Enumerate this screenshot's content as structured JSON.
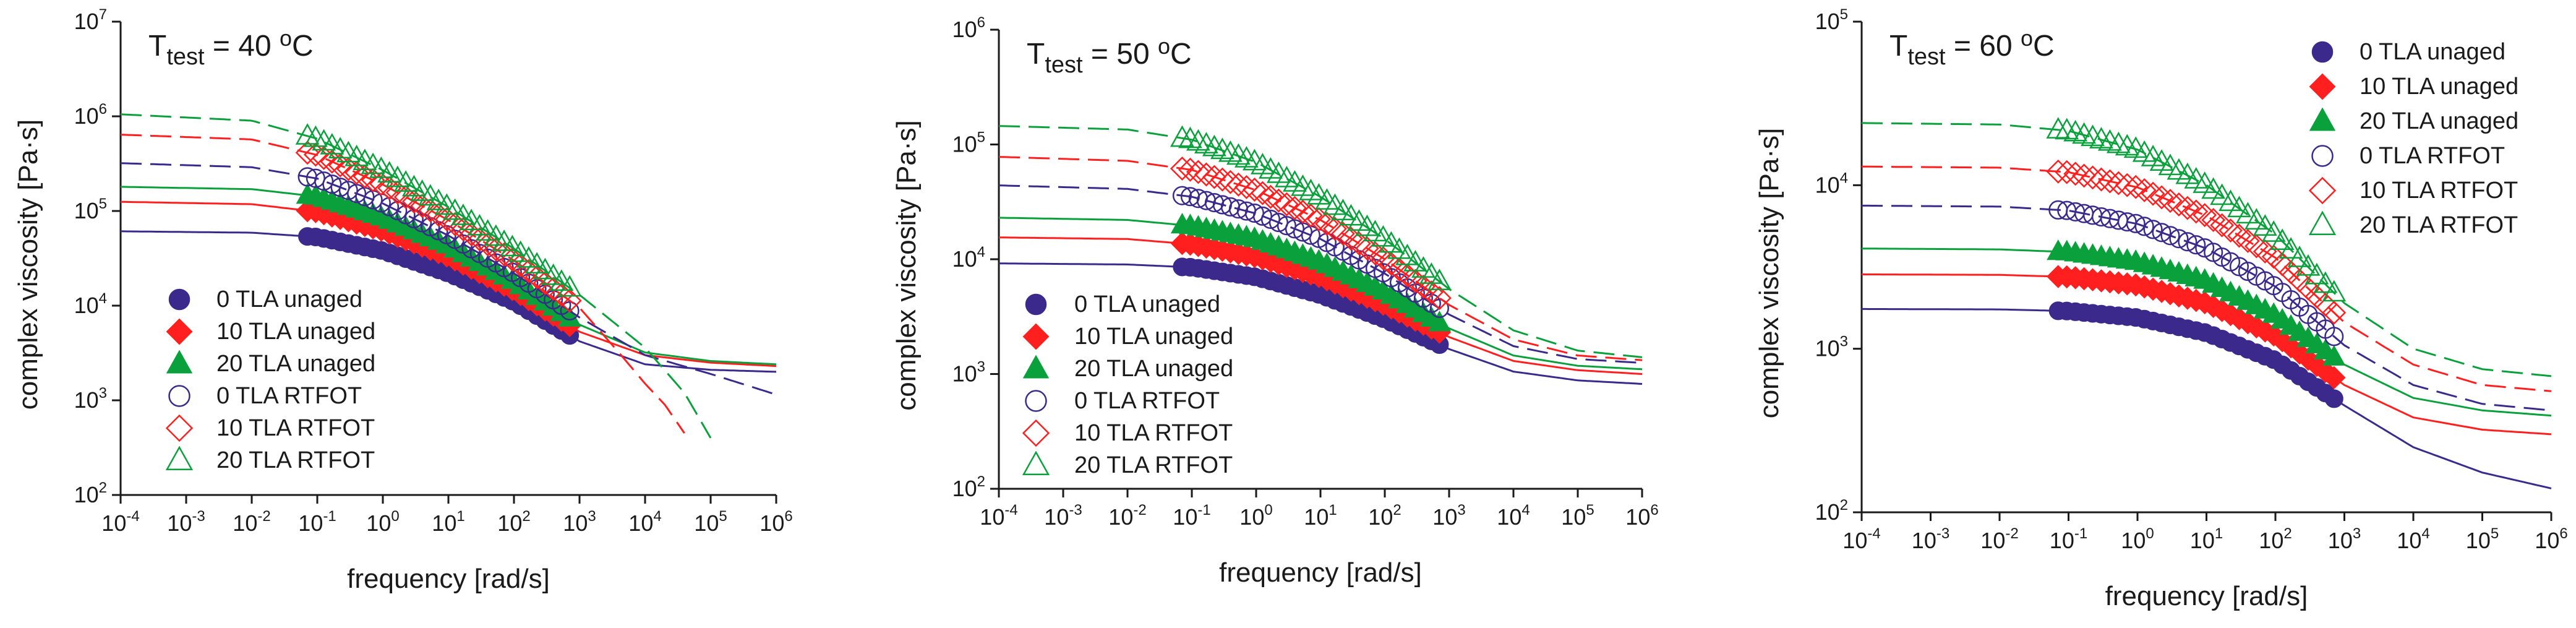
{
  "colors": {
    "0 TLA": "#3b2a8c",
    "10 TLA": "#ff1f1f",
    "20 TLA": "#0aa03c"
  },
  "chart_data": [
    {
      "type": "line",
      "title": {
        "prefix": "T",
        "sub": "test",
        "mid": " = 40 ",
        "sup": "o",
        "suffix": "C"
      },
      "xlabel": "frequency [rad/s]",
      "ylabel": "complex viscosity [Pa·s]",
      "xscale": "log",
      "yscale": "log",
      "xlim_exp": [
        -4,
        6
      ],
      "ylim_exp": [
        2,
        7
      ],
      "grid": false,
      "legend_position": "lower-left",
      "series": [
        {
          "name": "0 TLA unaged",
          "group": "0 TLA",
          "marker": "circle",
          "filled": true,
          "curve": "solid",
          "curve_points": [
            [
              -4,
              61000
            ],
            [
              -2,
              59000
            ],
            [
              -1,
              53000
            ],
            [
              0,
              38000
            ],
            [
              1,
              22000
            ],
            [
              2,
              11000
            ],
            [
              3,
              4200
            ],
            [
              4,
              2400
            ],
            [
              5,
              2100
            ],
            [
              6,
              2000
            ]
          ],
          "data_x_range": [
            -1.15,
            2.85
          ],
          "data_y_range": [
            45000,
            4800
          ]
        },
        {
          "name": "10 TLA unaged",
          "group": "10 TLA",
          "marker": "diamond",
          "filled": true,
          "curve": "solid",
          "curve_points": [
            [
              -4,
              125000
            ],
            [
              -2,
              118000
            ],
            [
              -1,
              98000
            ],
            [
              0,
              62000
            ],
            [
              1,
              33000
            ],
            [
              2,
              14500
            ],
            [
              3,
              5300
            ],
            [
              4,
              3000
            ],
            [
              5,
              2500
            ],
            [
              6,
              2300
            ]
          ],
          "data_x_range": [
            -1.15,
            2.85
          ],
          "data_y_range": [
            82000,
            6200
          ]
        },
        {
          "name": "20 TLA unaged",
          "group": "20 TLA",
          "marker": "triangle",
          "filled": true,
          "curve": "solid",
          "curve_points": [
            [
              -4,
              180000
            ],
            [
              -2,
              170000
            ],
            [
              -1,
              142000
            ],
            [
              0,
              85000
            ],
            [
              1,
              43000
            ],
            [
              2,
              18000
            ],
            [
              3,
              6300
            ],
            [
              4,
              3200
            ],
            [
              5,
              2600
            ],
            [
              6,
              2400
            ]
          ],
          "data_x_range": [
            -1.15,
            2.85
          ],
          "data_y_range": [
            115000,
            7000
          ]
        },
        {
          "name": "0 TLA RTFOT",
          "group": "0 TLA",
          "marker": "circle",
          "filled": false,
          "curve": "dashed",
          "curve_points": [
            [
              -4,
              320000
            ],
            [
              -2,
              290000
            ],
            [
              -1,
              220000
            ],
            [
              0,
              120000
            ],
            [
              1,
              55000
            ],
            [
              2,
              22000
            ],
            [
              3,
              7500
            ],
            [
              4,
              3000
            ],
            [
              5,
              1900
            ],
            [
              6,
              1150
            ]
          ],
          "data_x_range": [
            -1.15,
            2.85
          ],
          "data_y_range": [
            175000,
            8500
          ]
        },
        {
          "name": "10 TLA RTFOT",
          "group": "10 TLA",
          "marker": "diamond",
          "filled": false,
          "curve": "dashed",
          "curve_points": [
            [
              -4,
              640000
            ],
            [
              -2,
              570000
            ],
            [
              -1,
              390000
            ],
            [
              0,
              190000
            ],
            [
              1,
              80000
            ],
            [
              2,
              30000
            ],
            [
              3,
              9500
            ],
            [
              3.6,
              3200
            ],
            [
              4,
              1500
            ],
            [
              4.3,
              900
            ],
            [
              4.6,
              450
            ]
          ],
          "data_x_range": [
            -1.15,
            2.85
          ],
          "data_y_range": [
            280000,
            9500
          ]
        },
        {
          "name": "20 TLA RTFOT",
          "group": "20 TLA",
          "marker": "triangle",
          "filled": false,
          "curve": "dashed",
          "curve_points": [
            [
              -4,
              1050000
            ],
            [
              -2,
              900000
            ],
            [
              -1,
              580000
            ],
            [
              0,
              270000
            ],
            [
              1,
              110000
            ],
            [
              2,
              40000
            ],
            [
              3,
              13000
            ],
            [
              4,
              3600
            ],
            [
              4.6,
              1200
            ],
            [
              5,
              400
            ]
          ],
          "data_x_range": [
            -1.15,
            2.85
          ],
          "data_y_range": [
            420000,
            11000
          ]
        }
      ]
    },
    {
      "type": "line",
      "title": {
        "prefix": "T",
        "sub": "test",
        "mid": " = 50 ",
        "sup": "o",
        "suffix": "C"
      },
      "xlabel": "frequency [rad/s]",
      "ylabel": "complex viscosity [Pa·s]",
      "xscale": "log",
      "yscale": "log",
      "xlim_exp": [
        -4,
        6
      ],
      "ylim_exp": [
        2,
        6
      ],
      "grid": false,
      "legend_position": "lower-left",
      "series": [
        {
          "name": "0 TLA unaged",
          "group": "0 TLA",
          "marker": "circle",
          "filled": true,
          "curve": "solid",
          "curve_points": [
            [
              -4,
              9200
            ],
            [
              -2,
              9000
            ],
            [
              -1,
              8500
            ],
            [
              0,
              7000
            ],
            [
              1,
              4900
            ],
            [
              2,
              3000
            ],
            [
              3,
              1650
            ],
            [
              4,
              1050
            ],
            [
              5,
              880
            ],
            [
              6,
              820
            ]
          ],
          "data_x_range": [
            -1.15,
            2.85
          ],
          "data_y_range": [
            8000,
            1500
          ]
        },
        {
          "name": "10 TLA unaged",
          "group": "10 TLA",
          "marker": "diamond",
          "filled": true,
          "curve": "solid",
          "curve_points": [
            [
              -4,
              15500
            ],
            [
              -2,
              15000
            ],
            [
              -1,
              13500
            ],
            [
              0,
              10500
            ],
            [
              1,
              7000
            ],
            [
              2,
              4000
            ],
            [
              3,
              2100
            ],
            [
              4,
              1300
            ],
            [
              5,
              1080
            ],
            [
              6,
              1000
            ]
          ],
          "data_x_range": [
            -1.15,
            2.85
          ],
          "data_y_range": [
            12500,
            1900
          ]
        },
        {
          "name": "20 TLA unaged",
          "group": "20 TLA",
          "marker": "triangle",
          "filled": true,
          "curve": "solid",
          "curve_points": [
            [
              -4,
              23000
            ],
            [
              -2,
              22000
            ],
            [
              -1,
              19500
            ],
            [
              0,
              15000
            ],
            [
              1,
              9500
            ],
            [
              2,
              5200
            ],
            [
              3,
              2500
            ],
            [
              4,
              1450
            ],
            [
              5,
              1180
            ],
            [
              6,
              1100
            ]
          ],
          "data_x_range": [
            -1.15,
            2.85
          ],
          "data_y_range": [
            18000,
            2300
          ]
        },
        {
          "name": "0 TLA RTFOT",
          "group": "0 TLA",
          "marker": "circle",
          "filled": false,
          "curve": "dashed",
          "curve_points": [
            [
              -4,
              44000
            ],
            [
              -2,
              41000
            ],
            [
              -1,
              35000
            ],
            [
              0,
              25000
            ],
            [
              1,
              15000
            ],
            [
              2,
              7500
            ],
            [
              3,
              3300
            ],
            [
              4,
              1750
            ],
            [
              5,
              1350
            ],
            [
              6,
              1250
            ]
          ],
          "data_x_range": [
            -1.15,
            2.85
          ],
          "data_y_range": [
            32000,
            2900
          ]
        },
        {
          "name": "10 TLA RTFOT",
          "group": "10 TLA",
          "marker": "diamond",
          "filled": false,
          "curve": "dashed",
          "curve_points": [
            [
              -4,
              78000
            ],
            [
              -2,
              72000
            ],
            [
              -1,
              60000
            ],
            [
              0,
              40000
            ],
            [
              1,
              22000
            ],
            [
              2,
              10000
            ],
            [
              3,
              4000
            ],
            [
              4,
              2000
            ],
            [
              5,
              1450
            ],
            [
              6,
              1320
            ]
          ],
          "data_x_range": [
            -1.15,
            2.85
          ],
          "data_y_range": [
            55000,
            3500
          ]
        },
        {
          "name": "20 TLA RTFOT",
          "group": "20 TLA",
          "marker": "triangle",
          "filled": false,
          "curve": "dashed",
          "curve_points": [
            [
              -4,
              145000
            ],
            [
              -2,
              135000
            ],
            [
              -1,
              110000
            ],
            [
              0,
              70000
            ],
            [
              1,
              35000
            ],
            [
              2,
              15000
            ],
            [
              3,
              5500
            ],
            [
              4,
              2400
            ],
            [
              5,
              1600
            ],
            [
              6,
              1400
            ]
          ],
          "data_x_range": [
            -1.15,
            2.85
          ],
          "data_y_range": [
            95000,
            4500
          ]
        }
      ]
    },
    {
      "type": "line",
      "title": {
        "prefix": "T",
        "sub": "test",
        "mid": " = 60 ",
        "sup": "o",
        "suffix": "C"
      },
      "xlabel": "frequency [rad/s]",
      "ylabel": "complex viscosity [Pa·s]",
      "xscale": "log",
      "yscale": "log",
      "xlim_exp": [
        -4,
        6
      ],
      "ylim_exp": [
        2,
        5
      ],
      "grid": false,
      "legend_position": "top-right",
      "series": [
        {
          "name": "0 TLA unaged",
          "group": "0 TLA",
          "marker": "circle",
          "filled": true,
          "curve": "solid",
          "curve_points": [
            [
              -4,
              1750
            ],
            [
              -2,
              1740
            ],
            [
              -1,
              1700
            ],
            [
              0,
              1550
            ],
            [
              1,
              1250
            ],
            [
              2,
              850
            ],
            [
              3,
              450
            ],
            [
              4,
              250
            ],
            [
              5,
              175
            ],
            [
              6,
              140
            ]
          ],
          "data_x_range": [
            -1.15,
            2.85
          ],
          "data_y_range": [
            1650,
            460
          ]
        },
        {
          "name": "10 TLA unaged",
          "group": "10 TLA",
          "marker": "diamond",
          "filled": true,
          "curve": "solid",
          "curve_points": [
            [
              -4,
              2850
            ],
            [
              -2,
              2830
            ],
            [
              -1,
              2750
            ],
            [
              0,
              2450
            ],
            [
              1,
              1900
            ],
            [
              2,
              1200
            ],
            [
              3,
              600
            ],
            [
              4,
              380
            ],
            [
              5,
              320
            ],
            [
              6,
              300
            ]
          ],
          "data_x_range": [
            -1.15,
            2.85
          ],
          "data_y_range": [
            2650,
            640
          ]
        },
        {
          "name": "20 TLA unaged",
          "group": "20 TLA",
          "marker": "triangle",
          "filled": true,
          "curve": "solid",
          "curve_points": [
            [
              -4,
              4100
            ],
            [
              -2,
              4050
            ],
            [
              -1,
              3900
            ],
            [
              0,
              3400
            ],
            [
              1,
              2600
            ],
            [
              2,
              1600
            ],
            [
              3,
              800
            ],
            [
              4,
              500
            ],
            [
              5,
              420
            ],
            [
              6,
              390
            ]
          ],
          "data_x_range": [
            -1.15,
            2.85
          ],
          "data_y_range": [
            3800,
            880
          ]
        },
        {
          "name": "0 TLA  RTFOT",
          "group": "0 TLA",
          "marker": "circle",
          "filled": false,
          "curve": "dashed",
          "curve_points": [
            [
              -4,
              7500
            ],
            [
              -2,
              7400
            ],
            [
              -1,
              7000
            ],
            [
              0,
              5800
            ],
            [
              1,
              4100
            ],
            [
              2,
              2400
            ],
            [
              3,
              1050
            ],
            [
              4,
              600
            ],
            [
              5,
              460
            ],
            [
              6,
              420
            ]
          ],
          "data_x_range": [
            -1.15,
            2.85
          ],
          "data_y_range": [
            6700,
            1050
          ]
        },
        {
          "name": "10 TLA RTFOT",
          "group": "10 TLA",
          "marker": "diamond",
          "filled": false,
          "curve": "dashed",
          "curve_points": [
            [
              -4,
              13000
            ],
            [
              -2,
              12800
            ],
            [
              -1,
              12000
            ],
            [
              0,
              9700
            ],
            [
              1,
              6500
            ],
            [
              2,
              3600
            ],
            [
              3,
              1450
            ],
            [
              4,
              800
            ],
            [
              5,
              600
            ],
            [
              6,
              550
            ]
          ],
          "data_x_range": [
            -1.15,
            2.85
          ],
          "data_y_range": [
            11000,
            1350
          ]
        },
        {
          "name": "20 TLA RTFOT",
          "group": "20 TLA",
          "marker": "triangle",
          "filled": false,
          "curve": "dashed",
          "curve_points": [
            [
              -4,
              24000
            ],
            [
              -2,
              23500
            ],
            [
              -1,
              21500
            ],
            [
              0,
              16500
            ],
            [
              1,
              10000
            ],
            [
              2,
              5000
            ],
            [
              3,
              1900
            ],
            [
              4,
              1000
            ],
            [
              5,
              750
            ],
            [
              6,
              680
            ]
          ],
          "data_x_range": [
            -1.15,
            2.85
          ],
          "data_y_range": [
            19500,
            1750
          ]
        }
      ]
    }
  ]
}
